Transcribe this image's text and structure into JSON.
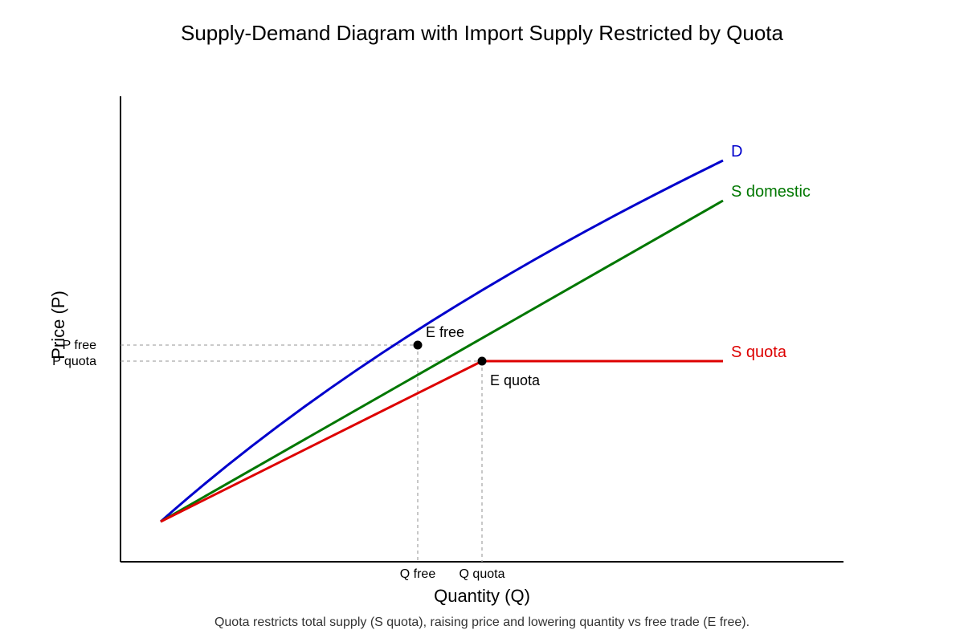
{
  "title": "Supply-Demand Diagram with Import Supply Restricted by Quota",
  "xlabel": "Quantity (Q)",
  "ylabel": "Price (P)",
  "caption": "Quota restricts total supply (S quota), raising price and lowering quantity vs free trade (E free).",
  "ticks": {
    "x": [
      "Q free",
      "Q quota"
    ],
    "y": [
      "P free",
      "P quota"
    ]
  },
  "curves": {
    "demand": {
      "label": "D",
      "color": "#0000cc"
    },
    "domestic": {
      "label": "S domestic",
      "color": "#007700"
    },
    "quota": {
      "label": "S quota",
      "color": "#dd0000"
    }
  },
  "points": {
    "free": {
      "label": "E free"
    },
    "quota": {
      "label": "E quota"
    }
  }
}
